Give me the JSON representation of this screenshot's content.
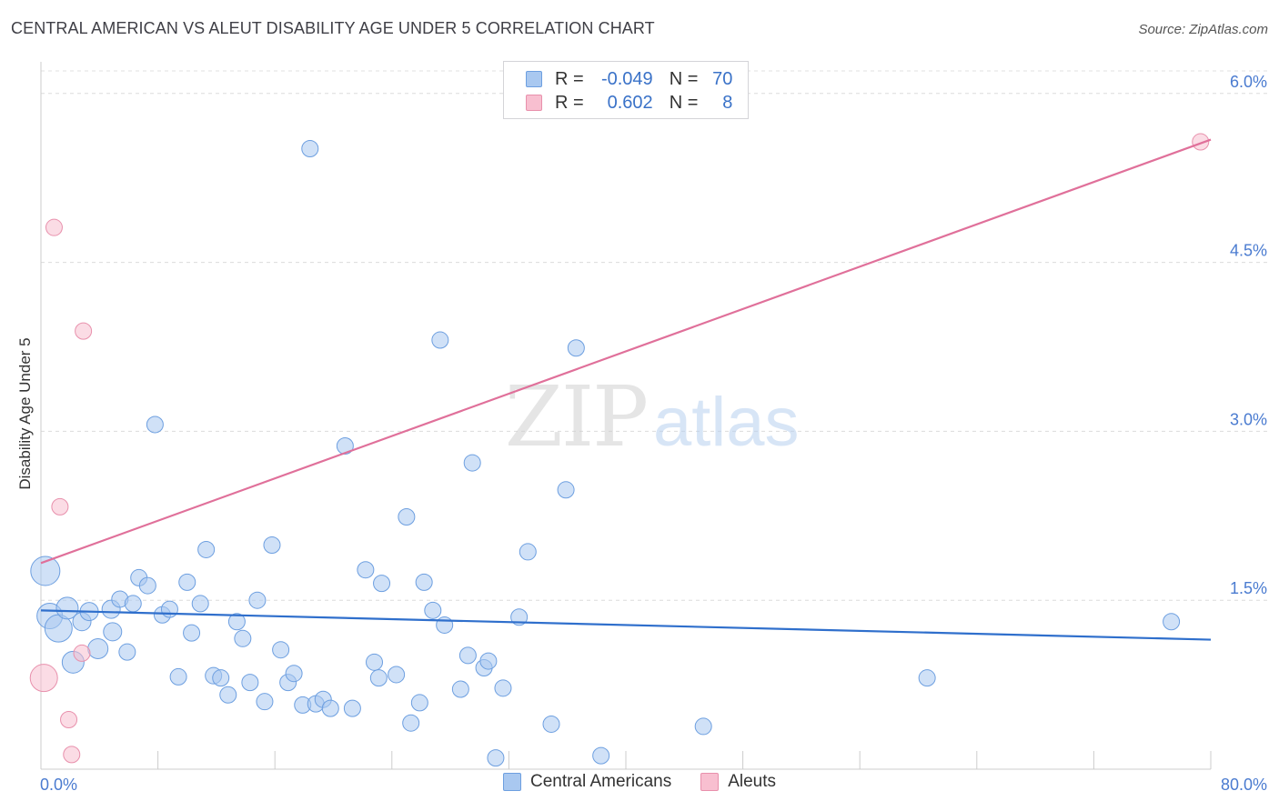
{
  "header": {
    "title": "CENTRAL AMERICAN VS ALEUT DISABILITY AGE UNDER 5 CORRELATION CHART",
    "source": "Source: ZipAtlas.com"
  },
  "watermark": {
    "zip": "ZIP",
    "atlas": "atlas"
  },
  "legend_top": {
    "rows": [
      {
        "r_label": "R =",
        "r_value": "-0.049",
        "n_label": "N =",
        "n_value": "70",
        "color": "#a9c8f0",
        "border": "#6d9fe0"
      },
      {
        "r_label": "R =",
        "r_value": "0.602",
        "n_label": "N =",
        "n_value": "8",
        "color": "#f8bfd0",
        "border": "#e890ac"
      }
    ]
  },
  "legend_bottom": [
    {
      "label": "Central Americans",
      "color": "#a9c8f0",
      "border": "#6d9fe0"
    },
    {
      "label": "Aleuts",
      "color": "#f8bfd0",
      "border": "#e890ac"
    }
  ],
  "chart_data": {
    "type": "scatter",
    "title": "CENTRAL AMERICAN VS ALEUT DISABILITY AGE UNDER 5 CORRELATION CHART",
    "xlabel": "",
    "ylabel": "Disability Age Under 5",
    "xlim": [
      0,
      80
    ],
    "ylim": [
      0,
      6.2
    ],
    "x_tick_labels": [
      "0.0%",
      "80.0%"
    ],
    "y_ticks": [
      1.5,
      3.0,
      4.5,
      6.0
    ],
    "y_tick_labels": [
      "1.5%",
      "3.0%",
      "4.5%",
      "6.0%"
    ],
    "grid": "horizontal dashed",
    "legend": "top-center",
    "series": [
      {
        "name": "Central Americans",
        "color": "#6d9fe0",
        "fill": "#a9c8f0",
        "points": [
          [
            0.3,
            1.76,
            16
          ],
          [
            0.6,
            1.36,
            14
          ],
          [
            1.2,
            1.25,
            15
          ],
          [
            1.8,
            1.43,
            12
          ],
          [
            2.2,
            0.95,
            12
          ],
          [
            2.8,
            1.31,
            10
          ],
          [
            3.3,
            1.4,
            10
          ],
          [
            3.9,
            1.07,
            11
          ],
          [
            4.8,
            1.42,
            10
          ],
          [
            4.9,
            1.22,
            10
          ],
          [
            5.4,
            1.51,
            9
          ],
          [
            5.9,
            1.04,
            9
          ],
          [
            6.3,
            1.47,
            9
          ],
          [
            6.7,
            1.7,
            9
          ],
          [
            7.3,
            1.63,
            9
          ],
          [
            7.8,
            3.06,
            9
          ],
          [
            8.3,
            1.37,
            9
          ],
          [
            8.8,
            1.42,
            9
          ],
          [
            9.4,
            0.82,
            9
          ],
          [
            10.0,
            1.66,
            9
          ],
          [
            10.3,
            1.21,
            9
          ],
          [
            10.9,
            1.47,
            9
          ],
          [
            11.3,
            1.95,
            9
          ],
          [
            11.8,
            0.83,
            9
          ],
          [
            12.3,
            0.81,
            9
          ],
          [
            12.8,
            0.66,
            9
          ],
          [
            13.4,
            1.31,
            9
          ],
          [
            13.8,
            1.16,
            9
          ],
          [
            14.3,
            0.77,
            9
          ],
          [
            14.8,
            1.5,
            9
          ],
          [
            15.3,
            0.6,
            9
          ],
          [
            15.8,
            1.99,
            9
          ],
          [
            16.4,
            1.06,
            9
          ],
          [
            16.9,
            0.77,
            9
          ],
          [
            17.3,
            0.85,
            9
          ],
          [
            17.9,
            0.57,
            9
          ],
          [
            18.4,
            5.51,
            9
          ],
          [
            18.8,
            0.58,
            9
          ],
          [
            19.3,
            0.62,
            9
          ],
          [
            19.8,
            0.54,
            9
          ],
          [
            20.8,
            2.87,
            9
          ],
          [
            21.3,
            0.54,
            9
          ],
          [
            22.2,
            1.77,
            9
          ],
          [
            22.8,
            0.95,
            9
          ],
          [
            23.1,
            0.81,
            9
          ],
          [
            23.3,
            1.65,
            9
          ],
          [
            24.3,
            0.84,
            9
          ],
          [
            25.0,
            2.24,
            9
          ],
          [
            25.3,
            0.41,
            9
          ],
          [
            25.9,
            0.59,
            9
          ],
          [
            26.2,
            1.66,
            9
          ],
          [
            26.8,
            1.41,
            9
          ],
          [
            27.3,
            3.81,
            9
          ],
          [
            27.6,
            1.28,
            9
          ],
          [
            28.7,
            0.71,
            9
          ],
          [
            29.2,
            1.01,
            9
          ],
          [
            29.5,
            2.72,
            9
          ],
          [
            30.3,
            0.9,
            9
          ],
          [
            30.6,
            0.96,
            9
          ],
          [
            31.1,
            0.1,
            9
          ],
          [
            31.6,
            0.72,
            9
          ],
          [
            32.7,
            1.35,
            9
          ],
          [
            33.3,
            1.93,
            9
          ],
          [
            34.9,
            0.4,
            9
          ],
          [
            35.9,
            2.48,
            9
          ],
          [
            36.6,
            3.74,
            9
          ],
          [
            38.3,
            0.12,
            9
          ],
          [
            45.3,
            0.38,
            9
          ],
          [
            60.6,
            0.81,
            9
          ],
          [
            77.3,
            1.31,
            9
          ]
        ],
        "trend": {
          "x": [
            0,
            80
          ],
          "y": [
            1.41,
            1.15
          ]
        }
      },
      {
        "name": "Aleuts",
        "color": "#e890ac",
        "fill": "#f8bfd0",
        "points": [
          [
            0.2,
            0.81,
            15
          ],
          [
            0.9,
            4.81,
            9
          ],
          [
            1.3,
            2.33,
            9
          ],
          [
            1.9,
            0.44,
            9
          ],
          [
            2.1,
            0.13,
            9
          ],
          [
            2.8,
            1.03,
            9
          ],
          [
            2.9,
            3.89,
            9
          ],
          [
            79.3,
            5.57,
            9
          ]
        ],
        "trend": {
          "x": [
            0,
            80
          ],
          "y": [
            1.83,
            5.59
          ]
        }
      }
    ]
  }
}
